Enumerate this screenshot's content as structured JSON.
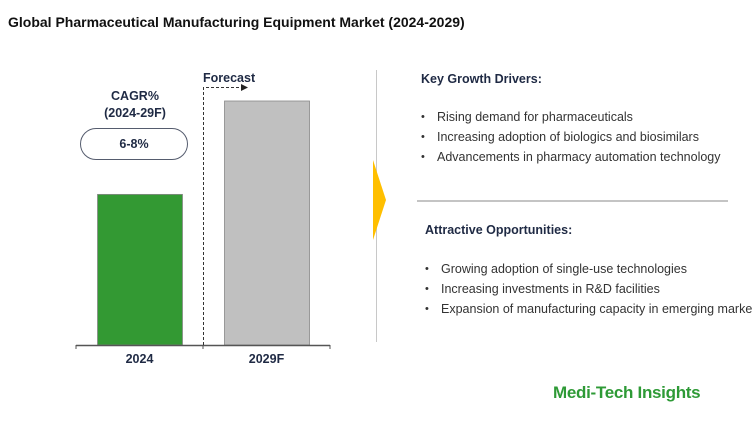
{
  "title": "Global Pharmaceutical Manufacturing Equipment Market (2024-2029)",
  "chart_data": {
    "type": "bar",
    "categories": [
      "2024",
      "2029F"
    ],
    "values": [
      100,
      162
    ],
    "value_note": "relative (unlabeled) bar heights",
    "colors": [
      "#339933",
      "#c0c0c0"
    ],
    "ylim": [
      0,
      180
    ],
    "forecast_label": "Forecast",
    "cagr_label_line1": "CAGR%",
    "cagr_label_line2": "(2024-29F)",
    "cagr_value": "6-8%"
  },
  "drivers": {
    "heading": "Key Growth Drivers:",
    "items": [
      "Rising demand for pharmaceuticals",
      "Increasing adoption of biologics and biosimilars",
      "Advancements in pharmacy automation technology"
    ]
  },
  "opportunities": {
    "heading": "Attractive Opportunities:",
    "items": [
      "Growing adoption of single-use technologies",
      "Increasing investments in R&D facilities",
      "Expansion of manufacturing capacity in emerging markets"
    ]
  },
  "brand": "Medi-Tech Insights",
  "accent": "#ffbf00"
}
